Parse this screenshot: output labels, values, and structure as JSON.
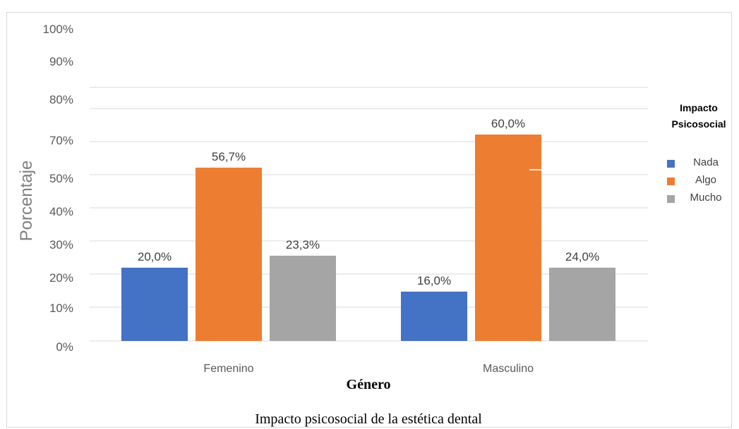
{
  "chart_data": {
    "type": "bar",
    "categories": [
      "Femenino",
      "Masculino"
    ],
    "series": [
      {
        "name": "Nada",
        "values": [
          20.0,
          16.0
        ],
        "labels": [
          "20,0%",
          "16,0%"
        ],
        "color": "#4472c4"
      },
      {
        "name": "Algo",
        "values": [
          56.7,
          60.0
        ],
        "labels": [
          "56,7%",
          "60,0%"
        ],
        "color": "#ed7d31"
      },
      {
        "name": "Mucho",
        "values": [
          23.3,
          24.0
        ],
        "labels": [
          "23,3%",
          "24,0%"
        ],
        "color": "#a5a5a5"
      }
    ],
    "yticks": [
      "0%",
      "10%",
      "20%",
      "30%",
      "40%",
      "50%",
      "70%",
      "80%",
      "90%",
      "100%"
    ],
    "ylabel": "Porcentaje",
    "xlabel": "Género",
    "ylim": [
      0,
      100
    ],
    "grid": true,
    "legend": {
      "title_line1": "Impacto",
      "title_line2": "Psicosocial",
      "position": "right"
    }
  },
  "caption": "Impacto psicosocial de la estética dental"
}
